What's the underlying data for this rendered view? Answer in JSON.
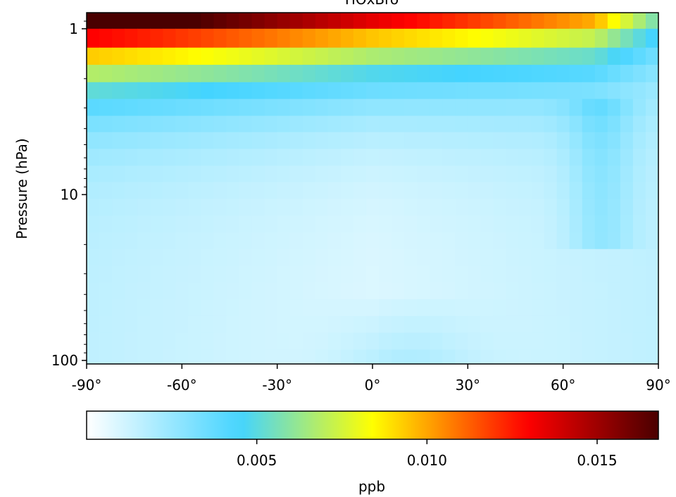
{
  "chart_data": {
    "type": "heatmap",
    "title": "HOxBro",
    "xlabel": "",
    "ylabel": "Pressure (hPa)",
    "x_range": [
      -90,
      90
    ],
    "x_ticks": [
      -90,
      -60,
      -30,
      0,
      30,
      60,
      90
    ],
    "x_tick_labels": [
      "-90°",
      "-60°",
      "-30°",
      "0°",
      "30°",
      "60°",
      "90°"
    ],
    "y_scale": "log",
    "y_inverted": true,
    "y_range": [
      0.8,
      105
    ],
    "y_ticks": [
      1,
      10,
      100
    ],
    "y_tick_labels": [
      "1",
      "10",
      "100"
    ],
    "latitudes": [
      -90,
      -86,
      -82,
      -78,
      -74,
      -70,
      -66,
      -62,
      -58,
      -54,
      -50,
      -46,
      -42,
      -38,
      -34,
      -30,
      -26,
      -22,
      -18,
      -14,
      -10,
      -6,
      -2,
      2,
      6,
      10,
      14,
      18,
      22,
      26,
      30,
      34,
      38,
      42,
      46,
      50,
      54,
      58,
      62,
      66,
      70,
      74,
      78,
      82,
      86,
      90
    ],
    "pressure_levels": [
      0.8,
      1.0,
      1.3,
      1.65,
      2.1,
      2.65,
      3.35,
      4.2,
      5.3,
      6.7,
      8.4,
      10.6,
      13.4,
      16.9,
      21.3,
      26.9,
      33.9,
      42.8,
      54.0,
      68.0,
      86.0,
      105.0
    ],
    "surface_params": {
      "top_max": 0.0168,
      "top_min": 0.0072,
      "decay_levels": 2.6,
      "floor": 0.0014,
      "floor_bump_lat": 10,
      "floor_bump_amp": 0.0012
    },
    "colorbar": {
      "label": "ppb",
      "min": 0.0,
      "max": 0.0168,
      "ticks": [
        0.005,
        0.01,
        0.015
      ],
      "tick_labels": [
        "0.005",
        "0.010",
        "0.015"
      ],
      "colormap": "jet-white-to-darkred"
    },
    "grid": false,
    "colors": {
      "stops": [
        "#ffffff",
        "#44d4ff",
        "#ffff00",
        "#ff0000",
        "#4a0000"
      ]
    }
  }
}
